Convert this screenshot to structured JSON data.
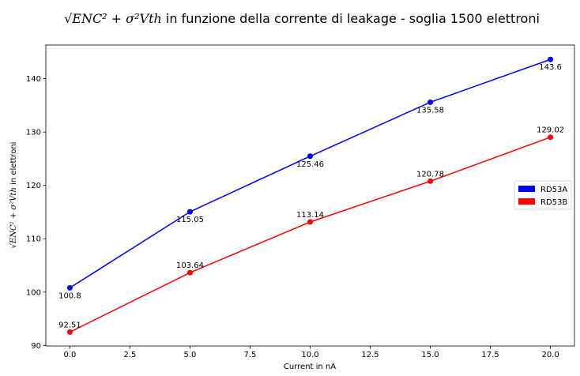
{
  "chart_data": {
    "type": "line",
    "title_math": "√ENC² + σ²Vth",
    "title_rest": " in funzione della corrente di leakage - soglia 1500 elettroni",
    "xlabel": "Current in nA",
    "ylabel_rest": " in elettroni",
    "x": [
      0,
      5,
      10,
      15,
      20
    ],
    "xticks": [
      "0.0",
      "2.5",
      "5.0",
      "7.5",
      "10.0",
      "12.5",
      "15.0",
      "17.5",
      "20.0"
    ],
    "xtick_values": [
      0,
      2.5,
      5,
      7.5,
      10,
      12.5,
      15,
      17.5,
      20
    ],
    "yticks": [
      "90",
      "100",
      "110",
      "120",
      "130",
      "140"
    ],
    "ytick_values": [
      90,
      100,
      110,
      120,
      130,
      140
    ],
    "xlim": [
      -1,
      21
    ],
    "ylim": [
      89.9,
      146.3
    ],
    "grid": false,
    "legend_position": "center-right",
    "series": [
      {
        "name": "RD53A",
        "color": "#0000ff",
        "values": [
          100.8,
          115.05,
          125.46,
          135.58,
          143.6
        ],
        "labels": [
          "100.8",
          "115.05",
          "125.46",
          "135.58",
          "143.6"
        ],
        "label_position": "below"
      },
      {
        "name": "RD53B",
        "color": "#ff0000",
        "values": [
          92.51,
          103.64,
          113.14,
          120.78,
          129.02
        ],
        "labels": [
          "92.51",
          "103.64",
          "113.14",
          "120.78",
          "129.02"
        ],
        "label_position": "above"
      }
    ]
  }
}
